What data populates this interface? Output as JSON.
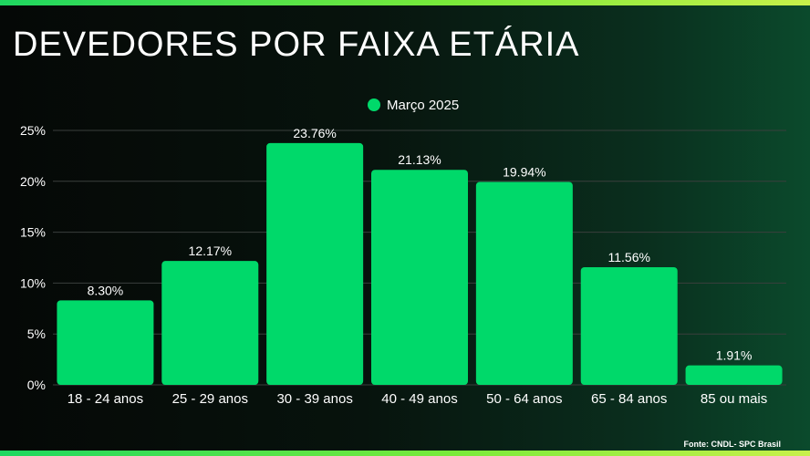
{
  "title": "DEVEDORES POR FAIXA ETÁRIA",
  "source": "Fonte: CNDL- SPC Brasil",
  "colors": {
    "bar": "#00d96a",
    "text": "#ffffff",
    "grid": "#3a3f3d"
  },
  "chart_data": {
    "type": "bar",
    "categories": [
      "18 - 24 anos",
      "25 - 29 anos",
      "30 - 39 anos",
      "40 - 49 anos",
      "50 - 64 anos",
      "65 - 84 anos",
      "85 ou mais"
    ],
    "series": [
      {
        "name": "Março 2025",
        "values": [
          8.3,
          12.17,
          23.76,
          21.13,
          19.94,
          11.56,
          1.91
        ],
        "labels": [
          "8.30%",
          "12.17%",
          "23.76%",
          "21.13%",
          "19.94%",
          "11.56%",
          "1.91%"
        ]
      }
    ],
    "ylim": [
      0,
      25
    ],
    "yticks": [
      0,
      5,
      10,
      15,
      20,
      25
    ],
    "ytick_labels": [
      "0%",
      "5%",
      "10%",
      "15%",
      "20%",
      "25%"
    ],
    "grid": true,
    "legend": "top-center"
  }
}
